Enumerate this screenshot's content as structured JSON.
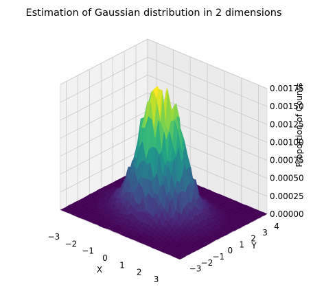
{
  "chart_data": {
    "type": "surface3d",
    "title": "Estimation of Gaussian distribution in 2 dimensions",
    "xlabel": "X",
    "ylabel": "Y",
    "zlabel": "Proportion of Counts",
    "xlim": [
      -3.5,
      3.5
    ],
    "ylim": [
      -3.5,
      4.0
    ],
    "zlim": [
      0,
      0.00175
    ],
    "xticks": [
      "−3",
      "−2",
      "−1",
      "0",
      "1",
      "2",
      "3"
    ],
    "yticks": [
      "−3",
      "−2",
      "−1",
      "0",
      "1",
      "2",
      "3",
      "4"
    ],
    "zticks": [
      "0.00000",
      "0.00025",
      "0.00050",
      "0.00075",
      "0.00100",
      "0.00125",
      "0.00150",
      "0.00175"
    ],
    "surface": {
      "distribution": "2D Gaussian",
      "mean": [
        0,
        0
      ],
      "std": [
        1,
        1
      ],
      "peak_value": 0.0017,
      "colormap": "viridis",
      "noisy_histogram": true
    },
    "grid": true
  }
}
